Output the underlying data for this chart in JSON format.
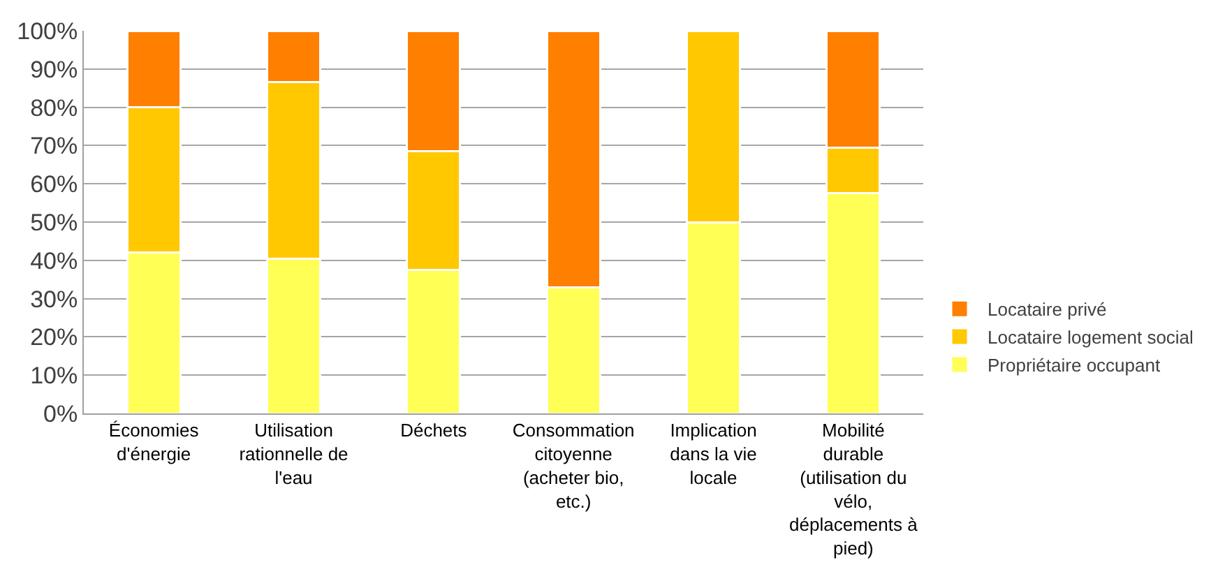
{
  "chart_data": {
    "type": "bar",
    "stacked": true,
    "categories": [
      "Économies\nd'énergie",
      "Utilisation\nrationnelle de\nl'eau",
      "Déchets",
      "Consommation\ncitoyenne\n(acheter bio,\netc.)",
      "Implication\ndans la vie\nlocale",
      "Mobilité\ndurable\n(utilisation du\nvélo,\ndéplacements à\npied)"
    ],
    "series": [
      {
        "name": "Propriétaire occupant",
        "color": "#ffff55",
        "values": [
          42,
          40.5,
          37.5,
          33,
          50,
          57.5
        ]
      },
      {
        "name": "Locataire logement social",
        "color": "#ffc800",
        "values": [
          38,
          46,
          31,
          0,
          50,
          12
        ]
      },
      {
        "name": "Locataire privé",
        "color": "#ff7f00",
        "values": [
          20,
          13.5,
          31.5,
          67,
          0,
          30.5
        ]
      }
    ],
    "ylim": [
      0,
      100
    ],
    "yticks": [
      {
        "value": 0,
        "label": "0%"
      },
      {
        "value": 10,
        "label": "10%"
      },
      {
        "value": 20,
        "label": "20%"
      },
      {
        "value": 30,
        "label": "30%"
      },
      {
        "value": 40,
        "label": "40%"
      },
      {
        "value": 50,
        "label": "50%"
      },
      {
        "value": 60,
        "label": "60%"
      },
      {
        "value": 70,
        "label": "70%"
      },
      {
        "value": 80,
        "label": "80%"
      },
      {
        "value": 90,
        "label": "90%"
      },
      {
        "value": 100,
        "label": "100%"
      }
    ],
    "grid": "y",
    "legend": "right"
  }
}
